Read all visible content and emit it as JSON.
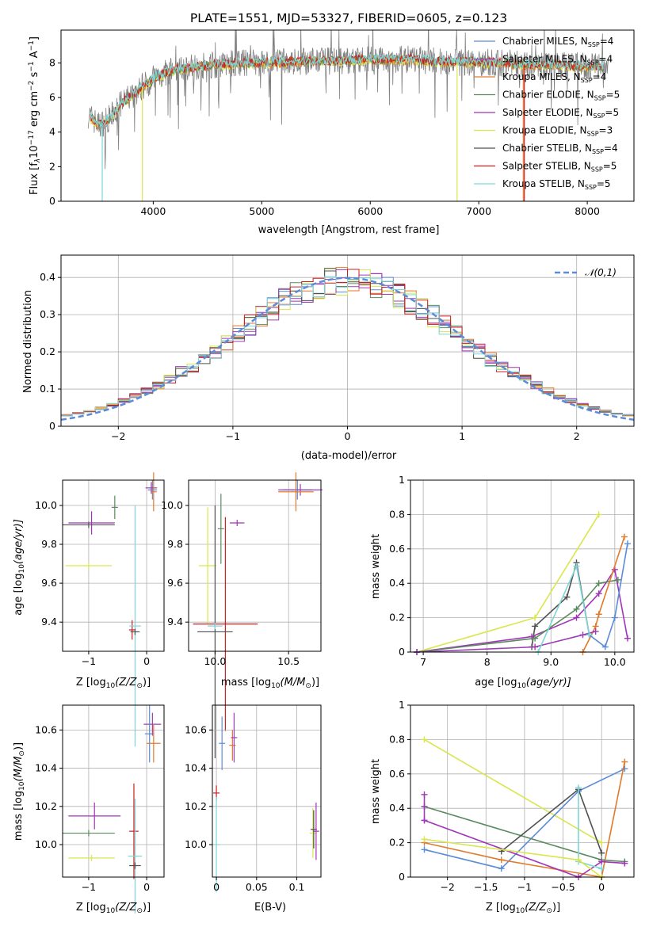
{
  "title": "PLATE=1551, MJD=53327, FIBERID=0605, z=0.123",
  "colors": {
    "Chabrier MILES": "#5b8bd9",
    "Salpeter MILES": "#9b3db5",
    "Kroupa MILES": "#e07a2c",
    "Chabrier ELODIE": "#5a8a5e",
    "Salpeter ELODIE": "#a233b8",
    "Kroupa ELODIE": "#d9e64d",
    "Chabrier STELIB": "#505050",
    "Salpeter STELIB": "#cc1f1f",
    "Kroupa STELIB": "#7fd6d9",
    "data": "#808080",
    "normal_curve": "#5b8bd9"
  },
  "spectrum_panel": {
    "xlabel": "wavelength [Angstrom, rest frame]",
    "ylabel": "Flux [f_λ 10^-17 erg cm^-2 s^-1 A^-1]",
    "ylabel_parts": {
      "a": "Flux [f",
      "b": "λ",
      "c": "10",
      "d": "−17",
      "e": " erg cm",
      "f": "−2",
      "g": " s",
      "h": "−1",
      "i": " A",
      "j": "−1",
      "k": "]"
    },
    "legend": [
      {
        "key": "Chabrier MILES",
        "pre": "Chabrier MILES, N",
        "sub": "SSP",
        "post": "=4"
      },
      {
        "key": "Salpeter MILES",
        "pre": "Salpeter MILES, N",
        "sub": "SSP",
        "post": "=4"
      },
      {
        "key": "Kroupa MILES",
        "pre": "Kroupa MILES, N",
        "sub": "SSP",
        "post": "=4"
      },
      {
        "key": "Chabrier ELODIE",
        "pre": "Chabrier ELODIE, N",
        "sub": "SSP",
        "post": "=5"
      },
      {
        "key": "Salpeter ELODIE",
        "pre": "Salpeter ELODIE, N",
        "sub": "SSP",
        "post": "=5"
      },
      {
        "key": "Kroupa ELODIE",
        "pre": "Kroupa ELODIE, N",
        "sub": "SSP",
        "post": "=3"
      },
      {
        "key": "Chabrier STELIB",
        "pre": "Chabrier STELIB, N",
        "sub": "SSP",
        "post": "=4"
      },
      {
        "key": "Salpeter STELIB",
        "pre": "Salpeter STELIB, N",
        "sub": "SSP",
        "post": "=5"
      },
      {
        "key": "Kroupa STELIB",
        "pre": "Kroupa STELIB, N",
        "sub": "SSP",
        "post": "=5"
      }
    ]
  },
  "residual_panel": {
    "xlabel": "(data-model)/error",
    "ylabel": "Normed distribution",
    "legend_label": "𝒩(0,1)"
  },
  "labels": {
    "age": "age  [log",
    "age_sub": "10",
    "age_tail": "(age/yr)]",
    "Z": "Z [log",
    "Z_sub": "10",
    "Z_tail": "(Z/Z",
    "Z_sun": "⊙",
    "Z_end": ")]",
    "mass": "mass [log",
    "mass_sub": "10",
    "mass_tail": "(M/M",
    "mass_sun": "⊙",
    "mass_end": ")]",
    "ebv": "E(B-V)",
    "mass_weight": "mass weight"
  },
  "chart_data": [
    {
      "type": "line",
      "id": "spectrum",
      "title": "PLATE=1551, MJD=53327, FIBERID=0605, z=0.123",
      "xlim": [
        3150,
        8430
      ],
      "ylim": [
        0,
        9.9
      ],
      "xticks": [
        4000,
        5000,
        6000,
        7000,
        8000
      ],
      "yticks": [
        0,
        2,
        4,
        6,
        8
      ],
      "continuum_x": [
        3400,
        3500,
        3600,
        3700,
        3800,
        3900,
        4000,
        4100,
        4200,
        4400,
        4600,
        4800,
        5000,
        5200,
        5400,
        5600,
        5800,
        6000,
        6200,
        6400,
        6600,
        6800,
        7000,
        7200,
        7400,
        7600,
        7800,
        8000,
        8200
      ],
      "continuum_y": [
        5.0,
        4.4,
        4.8,
        5.6,
        6.1,
        6.6,
        7.1,
        7.4,
        7.6,
        7.8,
        7.9,
        8.0,
        8.0,
        8.05,
        8.1,
        8.1,
        8.15,
        8.2,
        8.2,
        8.2,
        8.1,
        8.05,
        8.05,
        8.0,
        7.9,
        7.9,
        7.85,
        7.8,
        7.8
      ]
    },
    {
      "type": "bar",
      "id": "residual_histograms",
      "xlim": [
        -2.5,
        2.5
      ],
      "ylim": [
        0,
        0.46
      ],
      "xticks": [
        -2,
        -1,
        0,
        1,
        2
      ],
      "yticks": [
        0.0,
        0.1,
        0.2,
        0.3,
        0.4
      ],
      "bin_width": 0.1,
      "series_count": 9,
      "reference": {
        "name": "𝒩(0,1)",
        "mean": 0,
        "sigma": 1
      }
    },
    {
      "type": "scatter",
      "id": "age_vs_Z",
      "xlim": [
        -1.45,
        0.3
      ],
      "ylim": [
        9.25,
        10.13
      ],
      "xticks": [
        -1,
        0
      ],
      "yticks": [
        9.4,
        9.6,
        9.8,
        10.0
      ],
      "points": [
        {
          "key": "Chabrier MILES",
          "x": 0.1,
          "y": 10.08,
          "xerr": 0.08,
          "yerr": 0.05
        },
        {
          "key": "Salpeter MILES",
          "x": 0.08,
          "y": 10.09,
          "xerr": 0.1,
          "yerr": 0.03
        },
        {
          "key": "Kroupa MILES",
          "x": 0.12,
          "y": 10.07,
          "xerr": 0.05,
          "yerr": 0.1
        },
        {
          "key": "Chabrier ELODIE",
          "x": -0.55,
          "y": 9.99,
          "xerr": 0.0,
          "yerr": 0.06
        },
        {
          "key": "Salpeter ELODIE",
          "x": -0.95,
          "y": 9.91,
          "xerr": 0.4,
          "yerr": 0.06
        },
        {
          "key": "Kroupa ELODIE",
          "x": -1.0,
          "y": 9.69,
          "xerr": 0.4,
          "yerr": 0.0
        },
        {
          "key": "Chabrier STELIB",
          "x": -1.0,
          "y": 9.9,
          "xerr": 0.45,
          "yerr": 0.0
        },
        {
          "key": "Salpeter STELIB",
          "x": -0.25,
          "y": 9.36,
          "xerr": 0.0,
          "yerr": 0.05
        },
        {
          "key": "Kroupa STELIB",
          "x": -0.2,
          "y": 9.38,
          "xerr": 0.1,
          "yerr": 0.62
        },
        {
          "key": "Chabrier STELIB",
          "x": -0.2,
          "y": 9.35,
          "xerr": 0.08,
          "yerr": 0.0
        }
      ]
    },
    {
      "type": "scatter",
      "id": "age_vs_mass",
      "xlim": [
        9.82,
        10.72
      ],
      "ylim": [
        9.25,
        10.13
      ],
      "xticks": [
        10.0,
        10.5
      ],
      "yticks": [
        9.4,
        9.6,
        9.8,
        10.0
      ],
      "points": [
        {
          "key": "Chabrier MILES",
          "x": 10.56,
          "y": 10.08,
          "xerr": 0.1,
          "yerr": 0.05
        },
        {
          "key": "Salpeter MILES",
          "x": 10.58,
          "y": 10.08,
          "xerr": 0.15,
          "yerr": 0.03
        },
        {
          "key": "Kroupa MILES",
          "x": 10.55,
          "y": 10.07,
          "xerr": 0.12,
          "yerr": 0.1
        },
        {
          "key": "Salpeter ELODIE",
          "x": 10.15,
          "y": 9.91,
          "xerr": 0.05,
          "yerr": 0.0
        },
        {
          "key": "Chabrier ELODIE",
          "x": 10.04,
          "y": 9.88,
          "xerr": 0.0,
          "yerr": 0.18
        },
        {
          "key": "Kroupa ELODIE",
          "x": 9.95,
          "y": 9.69,
          "xerr": 0.06,
          "yerr": 0.3
        },
        {
          "key": "Salpeter STELIB",
          "x": 10.07,
          "y": 9.39,
          "xerr": 0.22,
          "yerr": 0.55
        },
        {
          "key": "Chabrier STELIB",
          "x": 10.0,
          "y": 9.35,
          "xerr": 0.12,
          "yerr": 0.65
        },
        {
          "key": "Kroupa STELIB",
          "x": 10.0,
          "y": 9.38,
          "xerr": 0.05,
          "yerr": 0.0
        }
      ]
    },
    {
      "type": "line",
      "id": "mass_weight_vs_age",
      "xlim": [
        6.8,
        10.3
      ],
      "ylim": [
        0,
        1.0
      ],
      "xticks": [
        7,
        8,
        9,
        10
      ],
      "yticks": [
        0.0,
        0.2,
        0.4,
        0.6,
        0.8,
        1.0
      ],
      "series": [
        {
          "key": "Kroupa ELODIE",
          "x": [
            6.9,
            8.75,
            9.75
          ],
          "y": [
            0.0,
            0.2,
            0.8
          ]
        },
        {
          "key": "Chabrier STELIB",
          "x": [
            8.7,
            8.75,
            9.25,
            9.4,
            9.6
          ],
          "y": [
            0.03,
            0.15,
            0.32,
            0.52,
            0.1
          ]
        },
        {
          "key": "Salpeter ELODIE",
          "x": [
            6.9,
            8.7,
            9.4,
            9.75,
            10.0,
            10.2
          ],
          "y": [
            0.0,
            0.09,
            0.2,
            0.34,
            0.48,
            0.08
          ]
        },
        {
          "key": "Chabrier ELODIE",
          "x": [
            6.9,
            8.75,
            9.4,
            9.75,
            10.05
          ],
          "y": [
            0.0,
            0.08,
            0.25,
            0.4,
            0.42
          ]
        },
        {
          "key": "Kroupa MILES",
          "x": [
            9.5,
            9.7,
            9.75,
            10.15
          ],
          "y": [
            0.0,
            0.15,
            0.22,
            0.67
          ]
        },
        {
          "key": "Chabrier MILES",
          "x": [
            9.6,
            9.85,
            10.0,
            10.2
          ],
          "y": [
            0.1,
            0.03,
            0.2,
            0.63
          ]
        },
        {
          "key": "Salpeter MILES",
          "x": [
            6.9,
            8.75,
            9.5,
            9.7
          ],
          "y": [
            0.0,
            0.03,
            0.1,
            0.12
          ]
        },
        {
          "key": "Kroupa STELIB",
          "x": [
            8.8,
            9.4,
            9.6
          ],
          "y": [
            0.0,
            0.5,
            0.1
          ]
        }
      ]
    },
    {
      "type": "scatter",
      "id": "mass_vs_Z",
      "xlim": [
        -1.45,
        0.3
      ],
      "ylim": [
        9.83,
        10.73
      ],
      "xticks": [
        -1,
        0
      ],
      "yticks": [
        10.0,
        10.2,
        10.4,
        10.6
      ],
      "points": [
        {
          "key": "Salpeter MILES",
          "x": 0.1,
          "y": 10.63,
          "xerr": 0.15,
          "yerr": 0.06
        },
        {
          "key": "Chabrier MILES",
          "x": 0.05,
          "y": 10.58,
          "xerr": 0.08,
          "yerr": 0.15
        },
        {
          "key": "Kroupa MILES",
          "x": 0.12,
          "y": 10.53,
          "xerr": 0.12,
          "yerr": 0.1
        },
        {
          "key": "Salpeter ELODIE",
          "x": -0.9,
          "y": 10.15,
          "xerr": 0.45,
          "yerr": 0.07
        },
        {
          "key": "Chabrier ELODIE",
          "x": -1.0,
          "y": 10.06,
          "xerr": 0.45,
          "yerr": 0.0
        },
        {
          "key": "Kroupa ELODIE",
          "x": -0.95,
          "y": 9.93,
          "xerr": 0.4,
          "yerr": 0.0
        },
        {
          "key": "Salpeter STELIB",
          "x": -0.22,
          "y": 10.07,
          "xerr": 0.08,
          "yerr": 0.25
        },
        {
          "key": "Kroupa STELIB",
          "x": -0.2,
          "y": 9.94,
          "xerr": 0.12,
          "yerr": 0.3
        },
        {
          "key": "Chabrier STELIB",
          "x": -0.2,
          "y": 9.89,
          "xerr": 0.1,
          "yerr": 0.0
        }
      ]
    },
    {
      "type": "scatter",
      "id": "mass_vs_ebv",
      "xlim": [
        -0.005,
        0.13
      ],
      "ylim": [
        9.83,
        10.73
      ],
      "xticks": [
        0.0,
        0.05,
        0.1
      ],
      "yticks": [
        10.0,
        10.2,
        10.4,
        10.6
      ],
      "points": [
        {
          "key": "Chabrier MILES",
          "x": 0.007,
          "y": 10.53,
          "xerr": 0.0,
          "yerr": 0.14
        },
        {
          "key": "Kroupa MILES",
          "x": 0.02,
          "y": 10.52,
          "xerr": 0.0,
          "yerr": 0.08
        },
        {
          "key": "Salpeter MILES",
          "x": 0.022,
          "y": 10.56,
          "xerr": 0.0,
          "yerr": 0.13
        },
        {
          "key": "Salpeter STELIB",
          "x": 0.0,
          "y": 10.27,
          "xerr": 0.0,
          "yerr": 0.04
        },
        {
          "key": "Kroupa STELIB",
          "x": 0.0,
          "y": 10.0,
          "xerr": 0.0,
          "yerr": 0.25
        },
        {
          "key": "Kroupa ELODIE",
          "x": 0.12,
          "y": 10.06,
          "xerr": 0.0,
          "yerr": 0.13
        },
        {
          "key": "Chabrier STELIB",
          "x": 0.121,
          "y": 10.08,
          "xerr": 0.0,
          "yerr": 0.1
        },
        {
          "key": "Salpeter ELODIE",
          "x": 0.124,
          "y": 10.07,
          "xerr": 0.0,
          "yerr": 0.15
        }
      ]
    },
    {
      "type": "line",
      "id": "mass_weight_vs_Z",
      "xlim": [
        -2.48,
        0.42
      ],
      "ylim": [
        0,
        1.0
      ],
      "xticks": [
        -2.0,
        -1.5,
        -1.0,
        -0.5,
        0.0
      ],
      "yticks": [
        0.0,
        0.2,
        0.4,
        0.6,
        0.8,
        1.0
      ],
      "series": [
        {
          "key": "Kroupa ELODIE",
          "x": [
            -2.3,
            0.0
          ],
          "y": [
            0.8,
            0.2
          ]
        },
        {
          "key": "Chabrier MILES",
          "x": [
            -2.3,
            -1.3,
            -0.3,
            0.3
          ],
          "y": [
            0.16,
            0.05,
            0.5,
            0.63
          ]
        },
        {
          "key": "Kroupa MILES",
          "x": [
            -2.3,
            -1.3,
            0.0,
            0.3
          ],
          "y": [
            0.2,
            0.1,
            0.0,
            0.67
          ]
        },
        {
          "key": "Chabrier ELODIE",
          "x": [
            -2.3,
            0.0,
            0.3
          ],
          "y": [
            0.41,
            0.1,
            0.09
          ]
        },
        {
          "key": "Salpeter ELODIE",
          "x": [
            -2.3,
            -0.3,
            0.0,
            0.3
          ],
          "y": [
            0.33,
            0.0,
            0.09,
            0.08
          ]
        },
        {
          "key": "Salpeter MILES",
          "x": [
            -2.3,
            -2.3,
            -2.3
          ],
          "y": [
            0.48,
            0.41,
            0.33
          ]
        },
        {
          "key": "Chabrier STELIB",
          "x": [
            -1.3,
            -0.3,
            0.0
          ],
          "y": [
            0.15,
            0.51,
            0.14
          ]
        },
        {
          "key": "Kroupa STELIB",
          "x": [
            -0.3,
            -0.3,
            0.0
          ],
          "y": [
            0.52,
            0.09,
            0.05
          ]
        },
        {
          "key": "Kroupa ELODIE",
          "x": [
            -2.3,
            -0.3,
            0.0
          ],
          "y": [
            0.22,
            0.1,
            0.0
          ]
        }
      ]
    }
  ]
}
